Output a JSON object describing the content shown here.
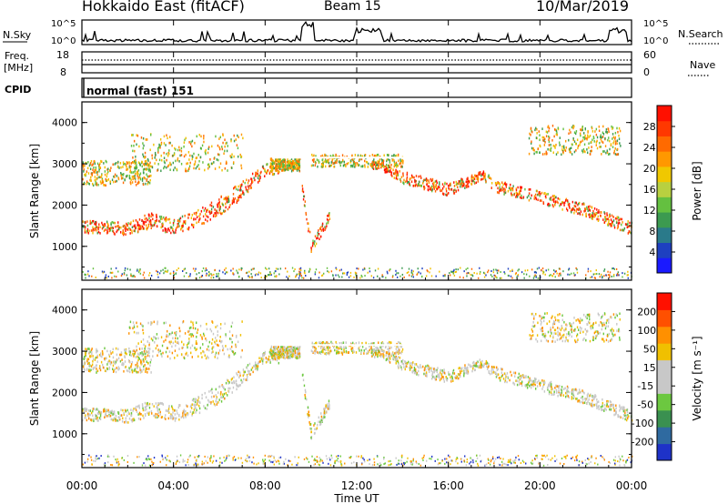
{
  "header": {
    "station": "Hokkaido East (fitACF)",
    "beam": "Beam 15",
    "date": "10/Mar/2019"
  },
  "status_panel": {
    "nsky_label": "N.Sky",
    "nsearch_label": "N.Search",
    "noise_ticks": [
      "10^5",
      "10^0"
    ],
    "freq_label": "Freq.",
    "freq_unit": "[MHz]",
    "freq_ticks": [
      "18",
      "8"
    ],
    "nave_label": "Nave",
    "nave_ticks": [
      "60",
      "0"
    ],
    "cpid_label": "CPID",
    "cpid_value": "normal (fast) 151"
  },
  "chart_data": [
    {
      "type": "heatmap",
      "name": "power",
      "ylabel": "Slant Range [km]",
      "yticks": [
        "4000",
        "3000",
        "2000",
        "1000"
      ],
      "ylim": [
        180,
        4500
      ],
      "colorbar_label": "Power [dB]",
      "colorbar_ticks": [
        "28",
        "24",
        "20",
        "16",
        "12",
        "8",
        "4"
      ],
      "colorbar_colors": [
        "#1a1aff",
        "#1e40c0",
        "#2a7a8a",
        "#3c9a50",
        "#64c040",
        "#b8d040",
        "#f0c800",
        "#ff9800",
        "#ff6a00",
        "#ff3800",
        "#ff1000"
      ]
    },
    {
      "type": "heatmap",
      "name": "velocity",
      "ylabel": "Slant Range [km]",
      "yticks": [
        "4000",
        "3000",
        "2000",
        "1000"
      ],
      "ylim": [
        180,
        4500
      ],
      "colorbar_label": "Velocity [m s⁻¹]",
      "colorbar_ticks": [
        "200",
        "100",
        "50",
        "15",
        "-15",
        "-50",
        "-100",
        "-200"
      ],
      "colorbar_colors": [
        "#1e32c8",
        "#2f6aa0",
        "#3a9050",
        "#6cc840",
        "#c8c8c8",
        "#c8c8c8",
        "#f0c000",
        "#ff9000",
        "#ff5000",
        "#ff1000"
      ]
    }
  ],
  "xaxis": {
    "label": "Time UT",
    "ticks": [
      "00:00",
      "04:00",
      "08:00",
      "12:00",
      "16:00",
      "20:00",
      "00:00"
    ]
  }
}
